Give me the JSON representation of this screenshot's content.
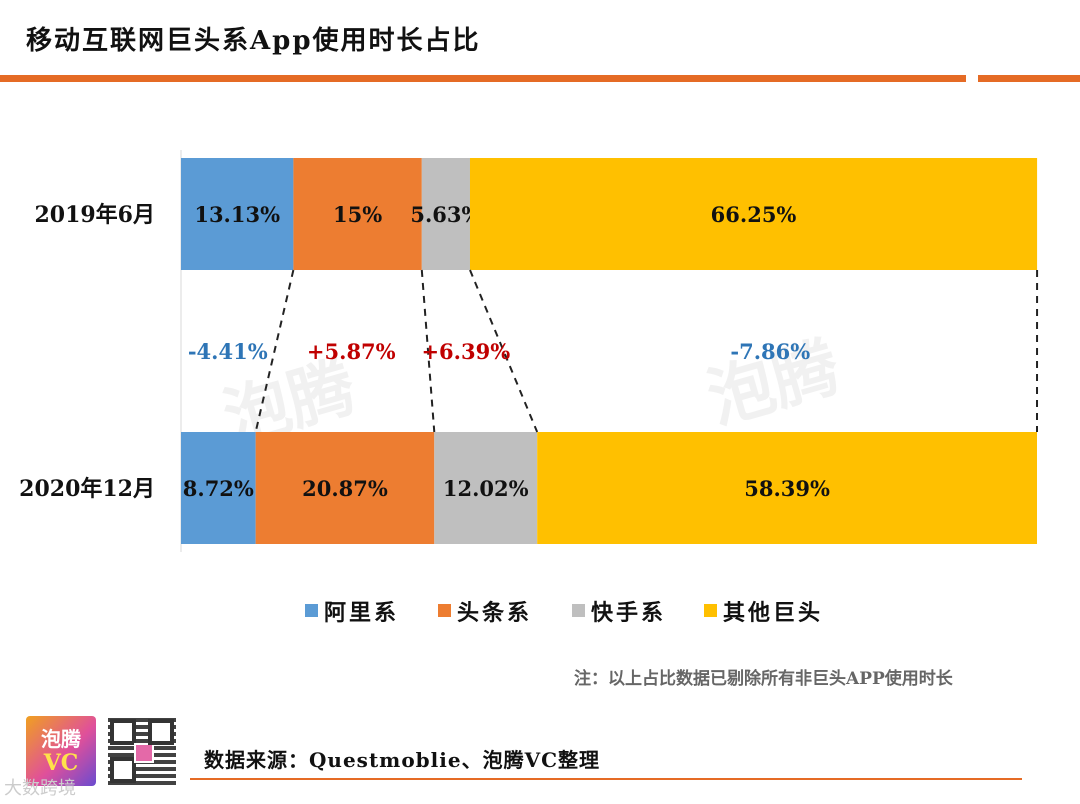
{
  "page": {
    "title": "移动互联网巨头系App使用时长占比",
    "note": "注：以上占比数据已剔除所有非巨头APP使用时长",
    "source": "数据来源：Questmoblie、泡腾VC整理",
    "watermark": "泡腾",
    "logo_line1": "泡腾",
    "logo_line2": "VC",
    "bottom_mark": "大数跨境"
  },
  "chart_data": {
    "type": "bar",
    "orientation": "horizontal",
    "stacked": "100%",
    "categories": [
      "2019年6月",
      "2020年12月"
    ],
    "series": [
      {
        "name": "阿里系",
        "color": "#5B9BD5",
        "values": [
          13.13,
          8.72
        ],
        "labels": [
          "13.13%",
          "8.72%"
        ]
      },
      {
        "name": "头条系",
        "color": "#ED7D31",
        "values": [
          15,
          20.87
        ],
        "labels": [
          "15%",
          "20.87%"
        ]
      },
      {
        "name": "快手系",
        "color": "#BFBFBF",
        "values": [
          5.63,
          12.02
        ],
        "labels": [
          "5.63%",
          "12.02%"
        ]
      },
      {
        "name": "其他巨头",
        "color": "#FFC000",
        "values": [
          66.25,
          58.39
        ],
        "labels": [
          "66.25%",
          "58.39%"
        ]
      }
    ],
    "changes": [
      {
        "label": "-4.41%",
        "color": "#2E75B6"
      },
      {
        "label": "+5.87%",
        "color": "#C00000"
      },
      {
        "label": "+6.39%",
        "color": "#C00000"
      },
      {
        "label": "-7.86%",
        "color": "#2E75B6"
      }
    ],
    "legend": "bottom"
  }
}
